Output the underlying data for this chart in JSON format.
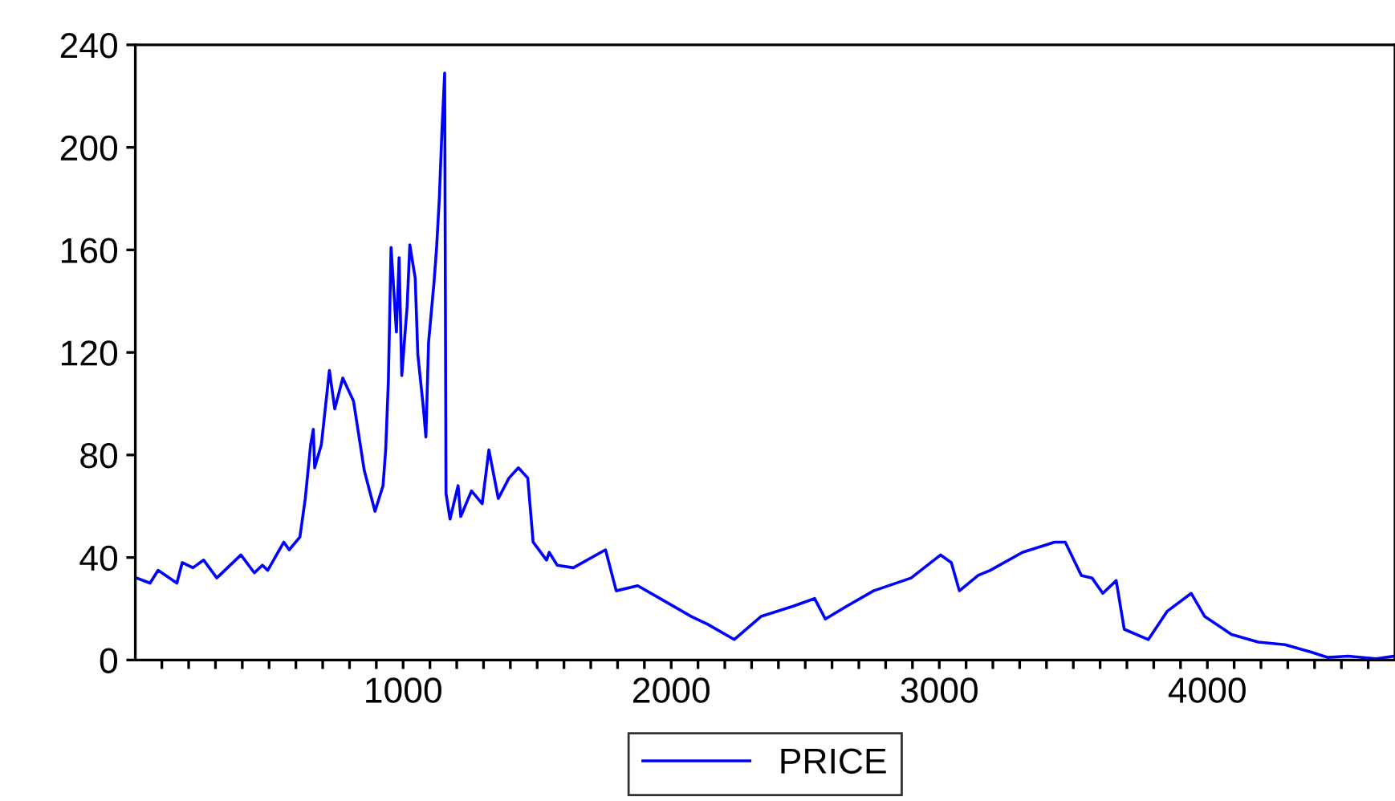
{
  "chart_data": {
    "type": "line",
    "legend": "bottom",
    "grid": false,
    "marker": "none",
    "line_style": "solid",
    "xlim": [
      1,
      4700
    ],
    "ylim": [
      0,
      240
    ],
    "yticks": [
      0,
      40,
      80,
      120,
      160,
      200,
      240
    ],
    "xticks": [
      {
        "value": 100,
        "label": null
      },
      {
        "value": 200,
        "label": null
      },
      {
        "value": 300,
        "label": null
      },
      {
        "value": 400,
        "label": null
      },
      {
        "value": 500,
        "label": null
      },
      {
        "value": 600,
        "label": null
      },
      {
        "value": 700,
        "label": null
      },
      {
        "value": 800,
        "label": null
      },
      {
        "value": 900,
        "label": null
      },
      1000,
      {
        "value": 1100,
        "label": null
      },
      {
        "value": 1200,
        "label": null
      },
      {
        "value": 1300,
        "label": null
      },
      {
        "value": 1400,
        "label": null
      },
      {
        "value": 1500,
        "label": null
      },
      {
        "value": 1600,
        "label": null
      },
      {
        "value": 1700,
        "label": null
      },
      {
        "value": 1800,
        "label": null
      },
      {
        "value": 1900,
        "label": null
      },
      2000,
      {
        "value": 2100,
        "label": null
      },
      {
        "value": 2200,
        "label": null
      },
      {
        "value": 2300,
        "label": null
      },
      {
        "value": 2400,
        "label": null
      },
      {
        "value": 2500,
        "label": null
      },
      {
        "value": 2600,
        "label": null
      },
      {
        "value": 2700,
        "label": null
      },
      {
        "value": 2800,
        "label": null
      },
      {
        "value": 2900,
        "label": null
      },
      3000,
      {
        "value": 3100,
        "label": null
      },
      {
        "value": 3200,
        "label": null
      },
      {
        "value": 3300,
        "label": null
      },
      {
        "value": 3400,
        "label": null
      },
      {
        "value": 3500,
        "label": null
      },
      {
        "value": 3600,
        "label": null
      },
      {
        "value": 3700,
        "label": null
      },
      {
        "value": 3800,
        "label": null
      },
      {
        "value": 3900,
        "label": null
      },
      4000,
      {
        "value": 4100,
        "label": null
      },
      {
        "value": 4200,
        "label": null
      },
      {
        "value": 4300,
        "label": null
      },
      {
        "value": 4400,
        "label": null
      },
      {
        "value": 4500,
        "label": null
      },
      {
        "value": 4600,
        "label": null
      }
    ],
    "series": [
      {
        "name": "PRICE",
        "color": "#0000ff",
        "x": [
          6,
          56,
          86,
          156,
          176,
          216,
          256,
          305,
          395,
          445,
          475,
          495,
          555,
          575,
          615,
          635,
          655,
          665,
          670,
          695,
          725,
          745,
          775,
          815,
          855,
          895,
          925,
          935,
          945,
          955,
          975,
          985,
          995,
          1015,
          1025,
          1045,
          1055,
          1075,
          1085,
          1095,
          1115,
          1125,
          1135,
          1145,
          1155,
          1160,
          1175,
          1205,
          1215,
          1255,
          1295,
          1320,
          1355,
          1395,
          1430,
          1465,
          1485,
          1535,
          1545,
          1575,
          1635,
          1755,
          1795,
          1875,
          1975,
          2075,
          2135,
          2235,
          2335,
          2455,
          2535,
          2575,
          2655,
          2755,
          2895,
          3005,
          3045,
          3075,
          3145,
          3190,
          3310,
          3430,
          3470,
          3530,
          3570,
          3610,
          3660,
          3690,
          3780,
          3850,
          3940,
          3990,
          4090,
          4190,
          4290,
          4390,
          4450,
          4525,
          4630,
          4695
        ],
        "values": [
          32,
          30,
          35,
          30,
          38,
          36,
          39,
          32,
          41,
          34,
          37,
          35,
          46,
          43,
          48,
          63,
          84,
          90,
          75,
          84,
          113,
          98,
          110,
          101,
          74,
          58,
          68,
          82,
          109,
          161,
          128,
          157,
          111,
          138,
          162,
          149,
          119,
          99,
          87,
          124,
          147,
          161,
          180,
          207,
          229,
          65,
          55,
          68,
          56,
          66,
          61,
          82,
          63,
          71,
          75,
          71,
          46,
          39,
          42,
          37,
          36,
          43,
          27,
          29,
          23,
          17,
          14,
          8,
          17,
          21,
          24,
          16,
          21,
          27,
          32,
          41,
          38,
          27,
          33,
          35,
          42,
          46,
          46,
          33,
          32,
          26,
          31,
          12,
          8,
          19,
          26,
          17,
          10,
          7,
          6,
          3,
          1,
          1.5,
          0.5,
          1.5
        ]
      }
    ]
  }
}
